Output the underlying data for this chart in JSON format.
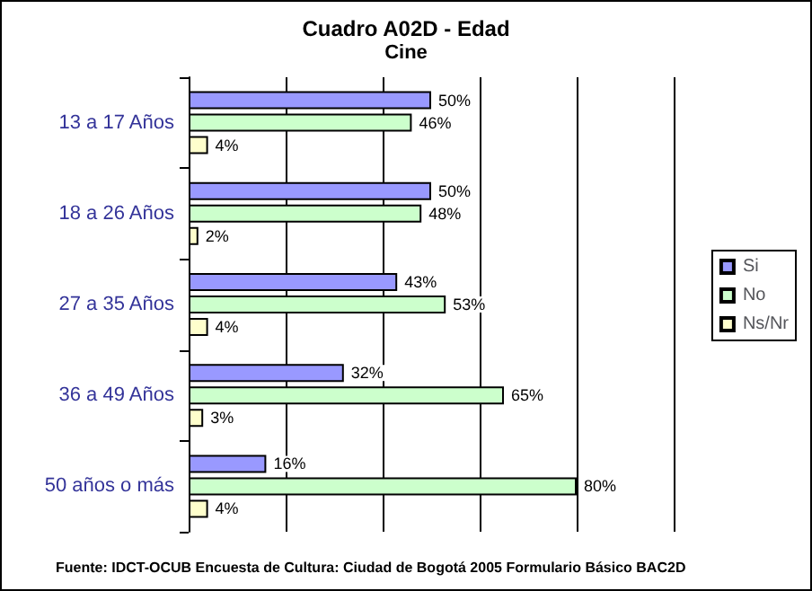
{
  "chart_data": {
    "type": "bar",
    "orientation": "horizontal",
    "title": "Cuadro A02D - Edad",
    "subtitle": "Cine",
    "categories": [
      "13 a 17 Años",
      "18 a 26 Años",
      "27 a 35 Años",
      "36 a 49 Años",
      "50 años o más"
    ],
    "series": [
      {
        "name": "Si",
        "color": "#9999ff",
        "values": [
          50,
          50,
          43,
          32,
          16
        ],
        "value_labels": [
          "50%",
          "50%",
          "43%",
          "32%",
          "16%"
        ]
      },
      {
        "name": "No",
        "color": "#ccffcc",
        "values": [
          46,
          48,
          53,
          65,
          80
        ],
        "value_labels": [
          "46%",
          "48%",
          "53%",
          "65%",
          "80%"
        ]
      },
      {
        "name": "Ns/Nr",
        "color": "#ffffcc",
        "values": [
          4,
          2,
          4,
          3,
          4
        ],
        "value_labels": [
          "4%",
          "2%",
          "4%",
          "3%",
          "4%"
        ]
      }
    ],
    "xlim": [
      0,
      100
    ],
    "grid": "x",
    "tick_labels": "y",
    "legend": "right",
    "annotations": [
      "Fuente: IDCT-OCUB Encuesta de Cultura: Ciudad de Bogotá 2005 Formulario Básico BAC2D"
    ]
  }
}
